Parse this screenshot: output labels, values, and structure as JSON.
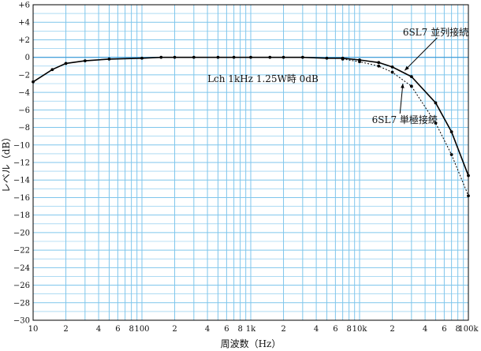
{
  "chart_data": {
    "type": "line",
    "xlabel": "周波数（Hz）",
    "ylabel": "レベル（dB）",
    "x_scale": "log",
    "xlim": [
      10,
      100000
    ],
    "ylim": [
      -30,
      6
    ],
    "grid": true,
    "x_tick_labels": [
      {
        "x": 10,
        "label": "10"
      },
      {
        "x": 20,
        "label": "2"
      },
      {
        "x": 40,
        "label": "4"
      },
      {
        "x": 60,
        "label": "6"
      },
      {
        "x": 80,
        "label": "8"
      },
      {
        "x": 100,
        "label": "100"
      },
      {
        "x": 200,
        "label": "2"
      },
      {
        "x": 400,
        "label": "4"
      },
      {
        "x": 600,
        "label": "6"
      },
      {
        "x": 800,
        "label": "8"
      },
      {
        "x": 1000,
        "label": "1k"
      },
      {
        "x": 2000,
        "label": "2"
      },
      {
        "x": 4000,
        "label": "4"
      },
      {
        "x": 6000,
        "label": "6"
      },
      {
        "x": 8000,
        "label": "8"
      },
      {
        "x": 10000,
        "label": "10k"
      },
      {
        "x": 20000,
        "label": "2"
      },
      {
        "x": 40000,
        "label": "4"
      },
      {
        "x": 60000,
        "label": "6"
      },
      {
        "x": 80000,
        "label": "8"
      },
      {
        "x": 100000,
        "label": "100k"
      }
    ],
    "y_tick_labels": [
      {
        "y": 6,
        "label": "+6"
      },
      {
        "y": 4,
        "label": "+4"
      },
      {
        "y": 2,
        "label": "+2"
      },
      {
        "y": 0,
        "label": "0"
      },
      {
        "y": -2,
        "label": "−2"
      },
      {
        "y": -4,
        "label": "−4"
      },
      {
        "y": -6,
        "label": "−6"
      },
      {
        "y": -8,
        "label": "−8"
      },
      {
        "y": -10,
        "label": "−10"
      },
      {
        "y": -12,
        "label": "−12"
      },
      {
        "y": -14,
        "label": "−14"
      },
      {
        "y": -16,
        "label": "−16"
      },
      {
        "y": -18,
        "label": "−18"
      },
      {
        "y": -20,
        "label": "−20"
      },
      {
        "y": -22,
        "label": "−22"
      },
      {
        "y": -24,
        "label": "−24"
      },
      {
        "y": -26,
        "label": "−26"
      },
      {
        "y": -28,
        "label": "−28"
      },
      {
        "y": -30,
        "label": "−30"
      }
    ],
    "series": [
      {
        "name": "6SL7 並列接続",
        "style": "solid",
        "x": [
          10,
          15,
          20,
          30,
          50,
          100,
          150,
          200,
          300,
          500,
          700,
          1000,
          1500,
          2000,
          3000,
          5000,
          7000,
          10000,
          15000,
          20000,
          30000,
          50000,
          70000,
          100000
        ],
        "y": [
          -2.8,
          -1.4,
          -0.7,
          -0.4,
          -0.2,
          -0.1,
          0,
          0,
          0,
          0,
          0,
          0,
          0,
          0,
          0,
          -0.1,
          -0.1,
          -0.3,
          -0.6,
          -1.1,
          -2.2,
          -5.2,
          -8.5,
          -13.5
        ]
      },
      {
        "name": "6SL7 単極接続",
        "style": "dotted",
        "x": [
          7000,
          10000,
          15000,
          20000,
          30000,
          50000,
          70000,
          100000
        ],
        "y": [
          -0.2,
          -0.5,
          -1.0,
          -1.7,
          -3.3,
          -7.5,
          -11.1,
          -15.8
        ]
      }
    ],
    "annotations": [
      {
        "text": "6SL7 並列接続",
        "x": 50000,
        "y": 2.5,
        "arrow_to": [
          26000,
          -1.5
        ]
      },
      {
        "text": "6SL7 単極接続",
        "x": 26000,
        "y": -7.5,
        "arrow_to": [
          25000,
          -3.0
        ]
      },
      {
        "text": "Lch 1kHz  1.25W時 0dB",
        "x": 400,
        "y": -2.8
      }
    ],
    "colors": {
      "line": "#000000",
      "grid": "#7fc6ec",
      "axis": "#000000"
    }
  }
}
